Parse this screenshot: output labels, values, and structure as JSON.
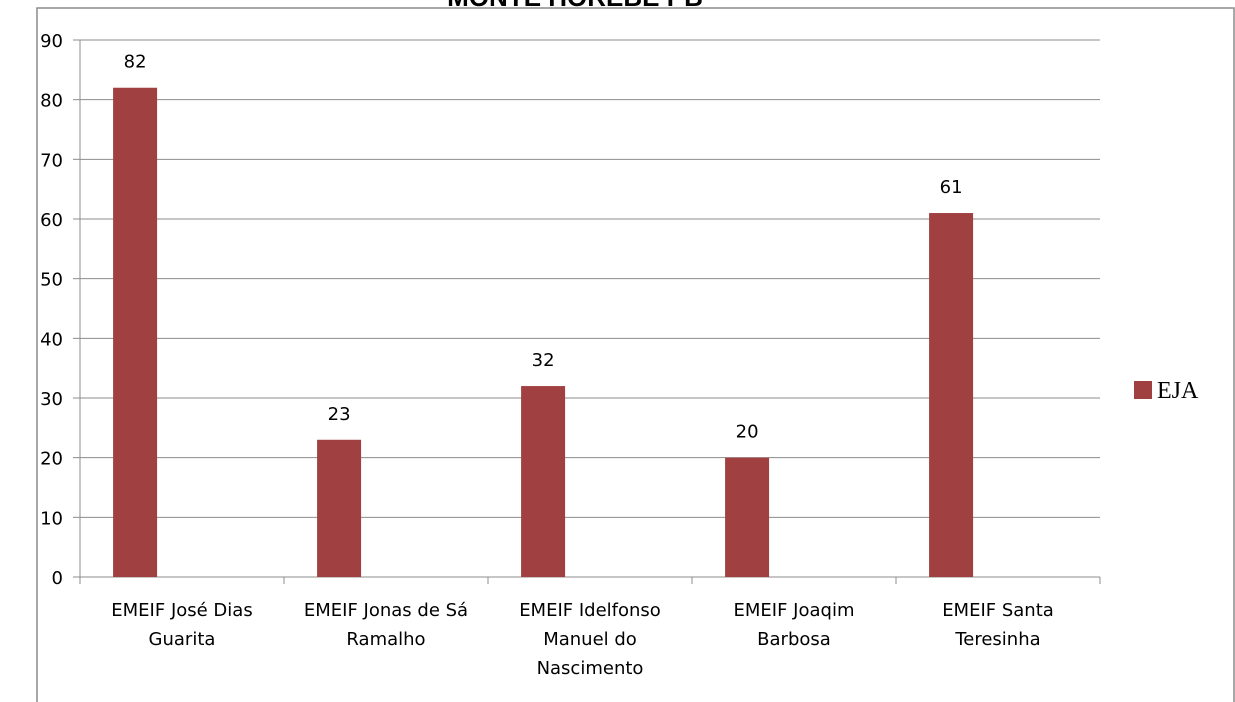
{
  "chart_data": {
    "type": "bar",
    "title": "MONTE HOREBE PB",
    "categories": [
      [
        "EMEIF José Dias",
        "Guarita"
      ],
      [
        "EMEIF Jonas de Sá",
        "Ramalho"
      ],
      [
        "EMEIF Idelfonso",
        "Manuel do",
        "Nascimento"
      ],
      [
        "EMEIF Joaqim",
        "Barbosa"
      ],
      [
        "EMEIF Santa",
        "Teresinha"
      ]
    ],
    "series": [
      {
        "name": "EJA",
        "values": [
          82,
          23,
          32,
          20,
          61
        ],
        "color": "#a04040"
      }
    ],
    "ylim": [
      0,
      90
    ],
    "yticks": [
      "0",
      "10",
      "20",
      "30",
      "40",
      "50",
      "60",
      "70",
      "80",
      "90"
    ],
    "grid": true,
    "legend_position": "right",
    "data_labels": [
      "82",
      "23",
      "32",
      "20",
      "61"
    ]
  }
}
